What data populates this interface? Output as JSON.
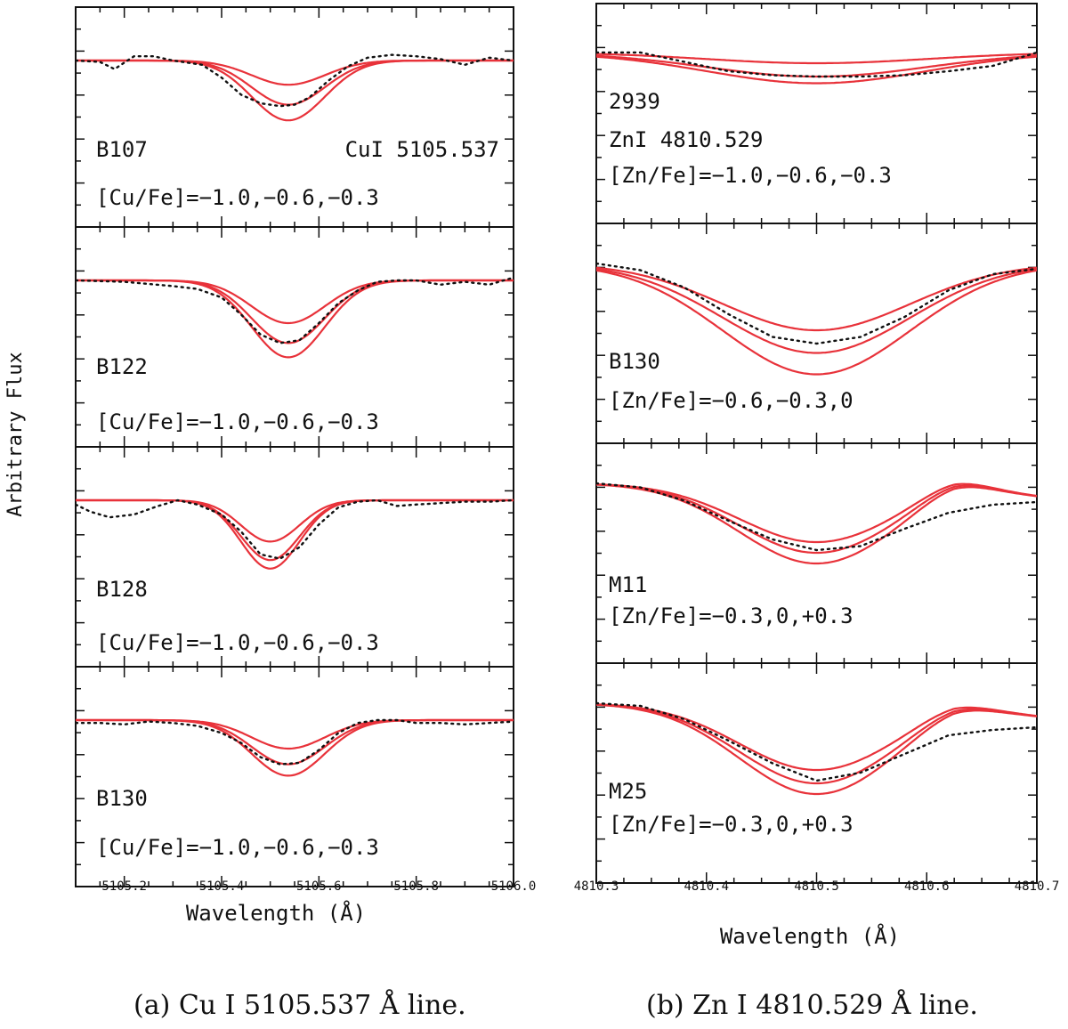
{
  "colors": {
    "model": "#e8323a",
    "observed": "#111111",
    "axis": "#111111"
  },
  "y_axis_label": "Arbitrary Flux",
  "captions": {
    "a": "(a) Cu I 5105.537 Å line.",
    "b": "(b) Zn I 4810.529 Å line."
  },
  "chart_data": [
    {
      "type": "line",
      "title": "Cu I 5105.537 Å",
      "xlabel": "Wavelength (Å)",
      "ylabel": "Arbitrary Flux",
      "xlim": [
        5105.1,
        5106.0
      ],
      "xticks": [
        "5105.2",
        "5105.4",
        "5105.6",
        "5105.8",
        "5106.0"
      ],
      "xtick_values": [
        5105.2,
        5105.4,
        5105.6,
        5105.8,
        5106.0
      ],
      "ylim": [
        0,
        1.15
      ],
      "panels": [
        {
          "star": "B107",
          "line_label": "CuI 5105.537",
          "abundance_label": "[Cu/Fe]=−1.0,−0.6,−0.3",
          "continuum": 1.0,
          "center": 5105.537,
          "sigma": 0.075,
          "depths": [
            0.17,
            0.31,
            0.42
          ],
          "observed": {
            "x": [
              5105.1,
              5105.15,
              5105.18,
              5105.22,
              5105.26,
              5105.3,
              5105.36,
              5105.4,
              5105.44,
              5105.48,
              5105.52,
              5105.55,
              5105.58,
              5105.62,
              5105.66,
              5105.7,
              5105.75,
              5105.8,
              5105.85,
              5105.9,
              5105.95,
              5106.0
            ],
            "y": [
              1.0,
              0.99,
              0.94,
              1.03,
              1.03,
              1.0,
              0.97,
              0.88,
              0.76,
              0.7,
              0.68,
              0.69,
              0.74,
              0.86,
              0.96,
              1.02,
              1.04,
              1.03,
              1.01,
              0.97,
              1.02,
              1.0
            ]
          }
        },
        {
          "star": "B122",
          "line_label": "",
          "abundance_label": "[Cu/Fe]=−1.0,−0.6,−0.3",
          "continuum": 1.0,
          "center": 5105.537,
          "sigma": 0.075,
          "depths": [
            0.3,
            0.44,
            0.54
          ],
          "observed": {
            "x": [
              5105.1,
              5105.2,
              5105.3,
              5105.35,
              5105.4,
              5105.44,
              5105.48,
              5105.52,
              5105.56,
              5105.6,
              5105.64,
              5105.68,
              5105.72,
              5105.76,
              5105.8,
              5105.85,
              5105.9,
              5105.95,
              5106.0
            ],
            "y": [
              1.0,
              0.99,
              0.96,
              0.94,
              0.88,
              0.76,
              0.62,
              0.56,
              0.58,
              0.7,
              0.84,
              0.93,
              0.99,
              1.0,
              1.0,
              0.97,
              0.99,
              0.97,
              1.02
            ]
          }
        },
        {
          "star": "B128",
          "line_label": "",
          "abundance_label": "[Cu/Fe]=−1.0,−0.6,−0.3",
          "continuum": 1.0,
          "center": 5105.5,
          "sigma": 0.06,
          "depths": [
            0.29,
            0.42,
            0.48
          ],
          "observed": {
            "x": [
              5105.1,
              5105.13,
              5105.17,
              5105.22,
              5105.27,
              5105.31,
              5105.35,
              5105.4,
              5105.44,
              5105.48,
              5105.52,
              5105.56,
              5105.6,
              5105.64,
              5105.68,
              5105.72,
              5105.76,
              5105.8,
              5105.85,
              5105.9,
              5105.95,
              5106.0
            ],
            "y": [
              0.97,
              0.92,
              0.88,
              0.9,
              0.96,
              1.0,
              0.97,
              0.9,
              0.78,
              0.62,
              0.59,
              0.67,
              0.83,
              0.95,
              0.99,
              1.0,
              0.96,
              0.97,
              0.98,
              0.99,
              0.99,
              1.0
            ]
          }
        },
        {
          "star": "B130",
          "line_label": "",
          "abundance_label": "[Cu/Fe]=−1.0,−0.6,−0.3",
          "continuum": 1.0,
          "center": 5105.537,
          "sigma": 0.075,
          "depths": [
            0.2,
            0.31,
            0.39
          ],
          "observed": {
            "x": [
              5105.1,
              5105.15,
              5105.2,
              5105.25,
              5105.3,
              5105.35,
              5105.4,
              5105.44,
              5105.48,
              5105.52,
              5105.56,
              5105.6,
              5105.64,
              5105.68,
              5105.72,
              5105.76,
              5105.8,
              5105.85,
              5105.9,
              5105.95,
              5106.0
            ],
            "y": [
              0.98,
              0.98,
              0.97,
              0.99,
              0.98,
              0.96,
              0.91,
              0.84,
              0.74,
              0.69,
              0.7,
              0.79,
              0.91,
              0.98,
              1.0,
              1.0,
              0.98,
              0.98,
              0.97,
              0.98,
              0.99
            ]
          }
        }
      ]
    },
    {
      "type": "line",
      "title": "Zn I 4810.529 Å",
      "xlabel": "Wavelength (Å)",
      "ylabel": "Arbitrary Flux",
      "xlim": [
        4810.3,
        4810.7
      ],
      "xticks": [
        "4810.3",
        "4810.4",
        "4810.5",
        "4810.6",
        "4810.7"
      ],
      "xtick_values": [
        4810.3,
        4810.4,
        4810.5,
        4810.6,
        4810.7
      ],
      "ylim": [
        0,
        1.15
      ],
      "panels": [
        {
          "star": "2939",
          "line_label": "ZnI 4810.529",
          "abundance_label": "[Zn/Fe]=−1.0,−0.6,−0.3",
          "continuum": 1.0,
          "center": 4810.5,
          "sigma": 0.1,
          "depths": [
            0.08,
            0.18,
            0.23
          ],
          "bump_center": 4810.7,
          "bump": 0.0,
          "observed": {
            "x": [
              4810.3,
              4810.34,
              4810.38,
              4810.42,
              4810.46,
              4810.5,
              4810.54,
              4810.58,
              4810.62,
              4810.66,
              4810.7
            ],
            "y": [
              1.0,
              1.0,
              0.93,
              0.86,
              0.83,
              0.82,
              0.82,
              0.83,
              0.86,
              0.9,
              1.0
            ]
          }
        },
        {
          "star": "B130",
          "line_label": "",
          "abundance_label": "[Zn/Fe]=−0.6,−0.3,0",
          "continuum": 1.0,
          "center": 4810.5,
          "sigma": 0.085,
          "depths": [
            0.5,
            0.67,
            0.83
          ],
          "bump_center": 4810.7,
          "bump": 0.0,
          "observed": {
            "x": [
              4810.3,
              4810.34,
              4810.38,
              4810.42,
              4810.46,
              4810.5,
              4810.54,
              4810.58,
              4810.62,
              4810.66,
              4810.7
            ],
            "y": [
              1.0,
              0.95,
              0.82,
              0.62,
              0.45,
              0.4,
              0.45,
              0.6,
              0.8,
              0.92,
              0.96
            ]
          }
        },
        {
          "star": "M11",
          "line_label": "",
          "abundance_label": "[Zn/Fe]=−0.3,0,+0.3",
          "continuum": 1.0,
          "center": 4810.5,
          "sigma": 0.07,
          "depths": [
            0.44,
            0.52,
            0.6
          ],
          "bump_center": 4810.625,
          "bump": 0.08,
          "observed": {
            "x": [
              4810.3,
              4810.34,
              4810.38,
              4810.42,
              4810.46,
              4810.5,
              4810.54,
              4810.58,
              4810.62,
              4810.66,
              4810.7
            ],
            "y": [
              1.0,
              0.97,
              0.87,
              0.72,
              0.58,
              0.5,
              0.53,
              0.66,
              0.78,
              0.84,
              0.86
            ]
          }
        },
        {
          "star": "M25",
          "line_label": "",
          "abundance_label": "[Zn/Fe]=−0.3,0,+0.3",
          "continuum": 1.0,
          "center": 4810.5,
          "sigma": 0.07,
          "depths": [
            0.5,
            0.6,
            0.68
          ],
          "bump_center": 4810.625,
          "bump": 0.06,
          "observed": {
            "x": [
              4810.3,
              4810.34,
              4810.38,
              4810.42,
              4810.46,
              4810.5,
              4810.54,
              4810.58,
              4810.62,
              4810.66,
              4810.7
            ],
            "y": [
              1.0,
              0.98,
              0.88,
              0.72,
              0.55,
              0.42,
              0.48,
              0.62,
              0.76,
              0.8,
              0.82
            ]
          }
        }
      ]
    }
  ]
}
